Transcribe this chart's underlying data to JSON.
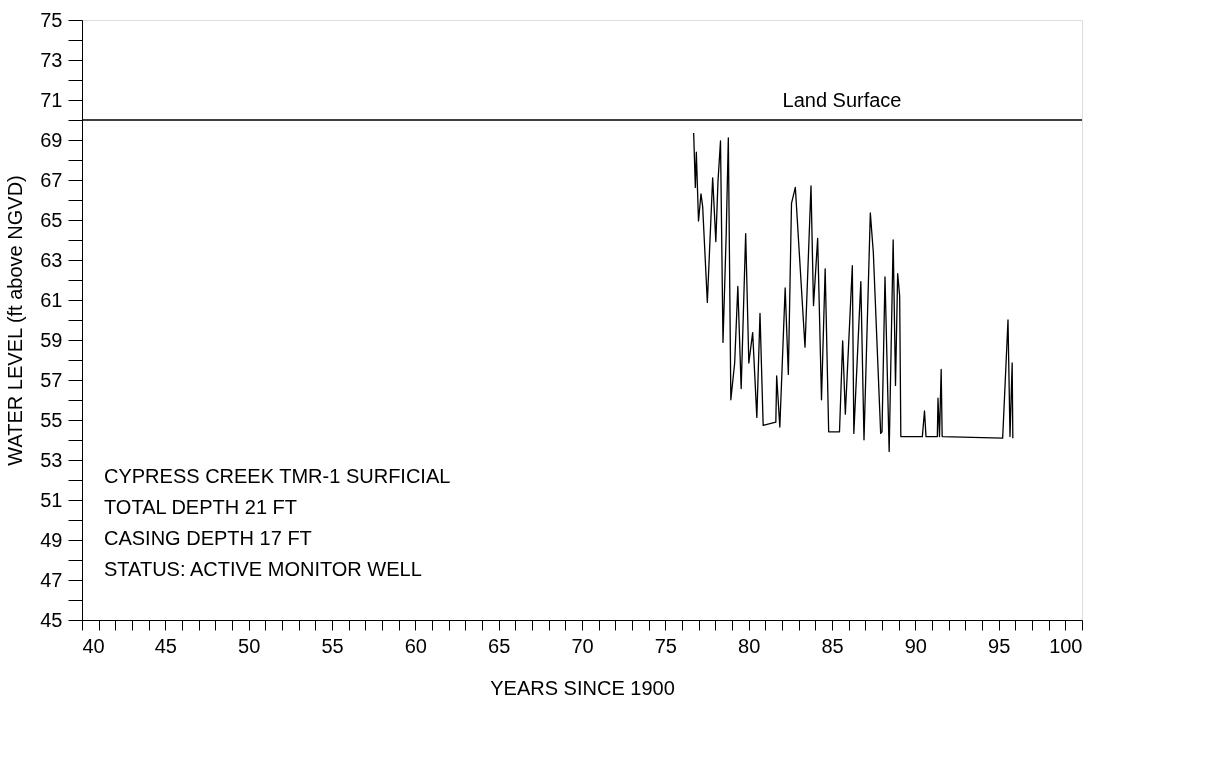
{
  "chart_data": {
    "type": "line",
    "xlabel": "YEARS SINCE 1900",
    "ylabel": "WATER LEVEL (ft above NGVD)",
    "x": [
      76.7,
      76.8,
      76.86,
      76.99,
      77.14,
      77.24,
      77.52,
      77.84,
      78.03,
      78.16,
      78.31,
      78.46,
      78.65,
      78.78,
      78.93,
      79.16,
      79.35,
      79.55,
      79.82,
      80.01,
      80.24,
      80.49,
      80.68,
      80.87,
      81.63,
      81.68,
      81.87,
      82.19,
      82.38,
      82.57,
      82.8,
      83.38,
      83.74,
      83.89,
      84.14,
      84.37,
      84.59,
      84.8,
      85.45,
      85.64,
      85.8,
      86.22,
      86.31,
      86.73,
      86.92,
      87.3,
      87.48,
      87.92,
      88.0,
      88.18,
      88.43,
      88.67,
      88.81,
      88.94,
      89.06,
      89.13,
      90.42,
      90.55,
      90.64,
      91.32,
      91.36,
      91.45,
      91.55,
      91.61,
      95.24,
      95.56,
      95.68,
      95.81,
      95.85
    ],
    "series": [
      {
        "color": "#000000",
        "values": [
          69.35,
          66.63,
          68.39,
          64.95,
          66.31,
          65.67,
          60.88,
          67.11,
          63.92,
          66.95,
          68.95,
          58.88,
          64.24,
          69.11,
          56.01,
          57.85,
          61.68,
          56.57,
          64.32,
          57.85,
          59.37,
          55.13,
          60.33,
          54.73,
          54.89,
          57.2,
          54.65,
          61.6,
          57.28,
          65.83,
          66.63,
          58.64,
          66.71,
          60.72,
          64.08,
          56.01,
          62.56,
          54.41,
          54.41,
          58.96,
          55.29,
          62.72,
          54.33,
          61.92,
          54.01,
          65.35,
          63.36,
          54.33,
          54.41,
          62.16,
          53.42,
          64.0,
          56.73,
          62.32,
          61.2,
          54.17,
          54.17,
          55.45,
          54.17,
          54.17,
          56.09,
          54.17,
          57.53,
          54.17,
          54.09,
          60.0,
          54.17,
          57.85,
          54.09
        ]
      }
    ],
    "xlim": [
      40,
      100
    ],
    "xticks": [
      40,
      {
        "value": 41,
        "label": null
      },
      {
        "value": 42,
        "label": null
      },
      {
        "value": 43,
        "label": null
      },
      {
        "value": 44,
        "label": null
      },
      45,
      {
        "value": 46,
        "label": null
      },
      {
        "value": 47,
        "label": null
      },
      {
        "value": 48,
        "label": null
      },
      {
        "value": 49,
        "label": null
      },
      50,
      {
        "value": 51,
        "label": null
      },
      {
        "value": 52,
        "label": null
      },
      {
        "value": 53,
        "label": null
      },
      {
        "value": 54,
        "label": null
      },
      55,
      {
        "value": 56,
        "label": null
      },
      {
        "value": 57,
        "label": null
      },
      {
        "value": 58,
        "label": null
      },
      {
        "value": 59,
        "label": null
      },
      60,
      {
        "value": 61,
        "label": null
      },
      {
        "value": 62,
        "label": null
      },
      {
        "value": 63,
        "label": null
      },
      {
        "value": 64,
        "label": null
      },
      65,
      {
        "value": 66,
        "label": null
      },
      {
        "value": 67,
        "label": null
      },
      {
        "value": 68,
        "label": null
      },
      {
        "value": 69,
        "label": null
      },
      70,
      {
        "value": 71,
        "label": null
      },
      {
        "value": 72,
        "label": null
      },
      {
        "value": 73,
        "label": null
      },
      {
        "value": 74,
        "label": null
      },
      75,
      {
        "value": 76,
        "label": null
      },
      {
        "value": 77,
        "label": null
      },
      {
        "value": 78,
        "label": null
      },
      {
        "value": 79,
        "label": null
      },
      80,
      {
        "value": 81,
        "label": null
      },
      {
        "value": 82,
        "label": null
      },
      {
        "value": 83,
        "label": null
      },
      {
        "value": 84,
        "label": null
      },
      85,
      {
        "value": 86,
        "label": null
      },
      {
        "value": 87,
        "label": null
      },
      {
        "value": 88,
        "label": null
      },
      {
        "value": 89,
        "label": null
      },
      90,
      {
        "value": 91,
        "label": null
      },
      {
        "value": 92,
        "label": null
      },
      {
        "value": 93,
        "label": null
      },
      {
        "value": 94,
        "label": null
      },
      95,
      {
        "value": 96,
        "label": null
      },
      {
        "value": 97,
        "label": null
      },
      {
        "value": 98,
        "label": null
      },
      {
        "value": 99,
        "label": null
      },
      100
    ],
    "ylim": [
      45,
      75
    ],
    "yticks": [
      45,
      {
        "value": 46,
        "label": null
      },
      47,
      {
        "value": 48,
        "label": null
      },
      49,
      {
        "value": 50,
        "label": null
      },
      51,
      {
        "value": 52,
        "label": null
      },
      53,
      {
        "value": 54,
        "label": null
      },
      55,
      {
        "value": 56,
        "label": null
      },
      57,
      {
        "value": 58,
        "label": null
      },
      59,
      {
        "value": 60,
        "label": null
      },
      61,
      {
        "value": 62,
        "label": null
      },
      63,
      {
        "value": 64,
        "label": null
      },
      65,
      {
        "value": 66,
        "label": null
      },
      67,
      {
        "value": 68,
        "label": null
      },
      69,
      {
        "value": 70,
        "label": null
      },
      71,
      {
        "value": 72,
        "label": null
      },
      73,
      {
        "value": 74,
        "label": null
      },
      75
    ],
    "ref_lines": [
      {
        "axis": "y",
        "value": 70,
        "label": "Land Surface",
        "color": "#000000"
      }
    ],
    "annotations": [
      "CYPRESS CREEK TMR-1 SURFICIAL",
      "TOTAL DEPTH 21 FT",
      "CASING DEPTH 17 FT",
      "STATUS: ACTIVE MONITOR WELL"
    ],
    "grid": false,
    "marker": "none",
    "line_style": "solid"
  }
}
